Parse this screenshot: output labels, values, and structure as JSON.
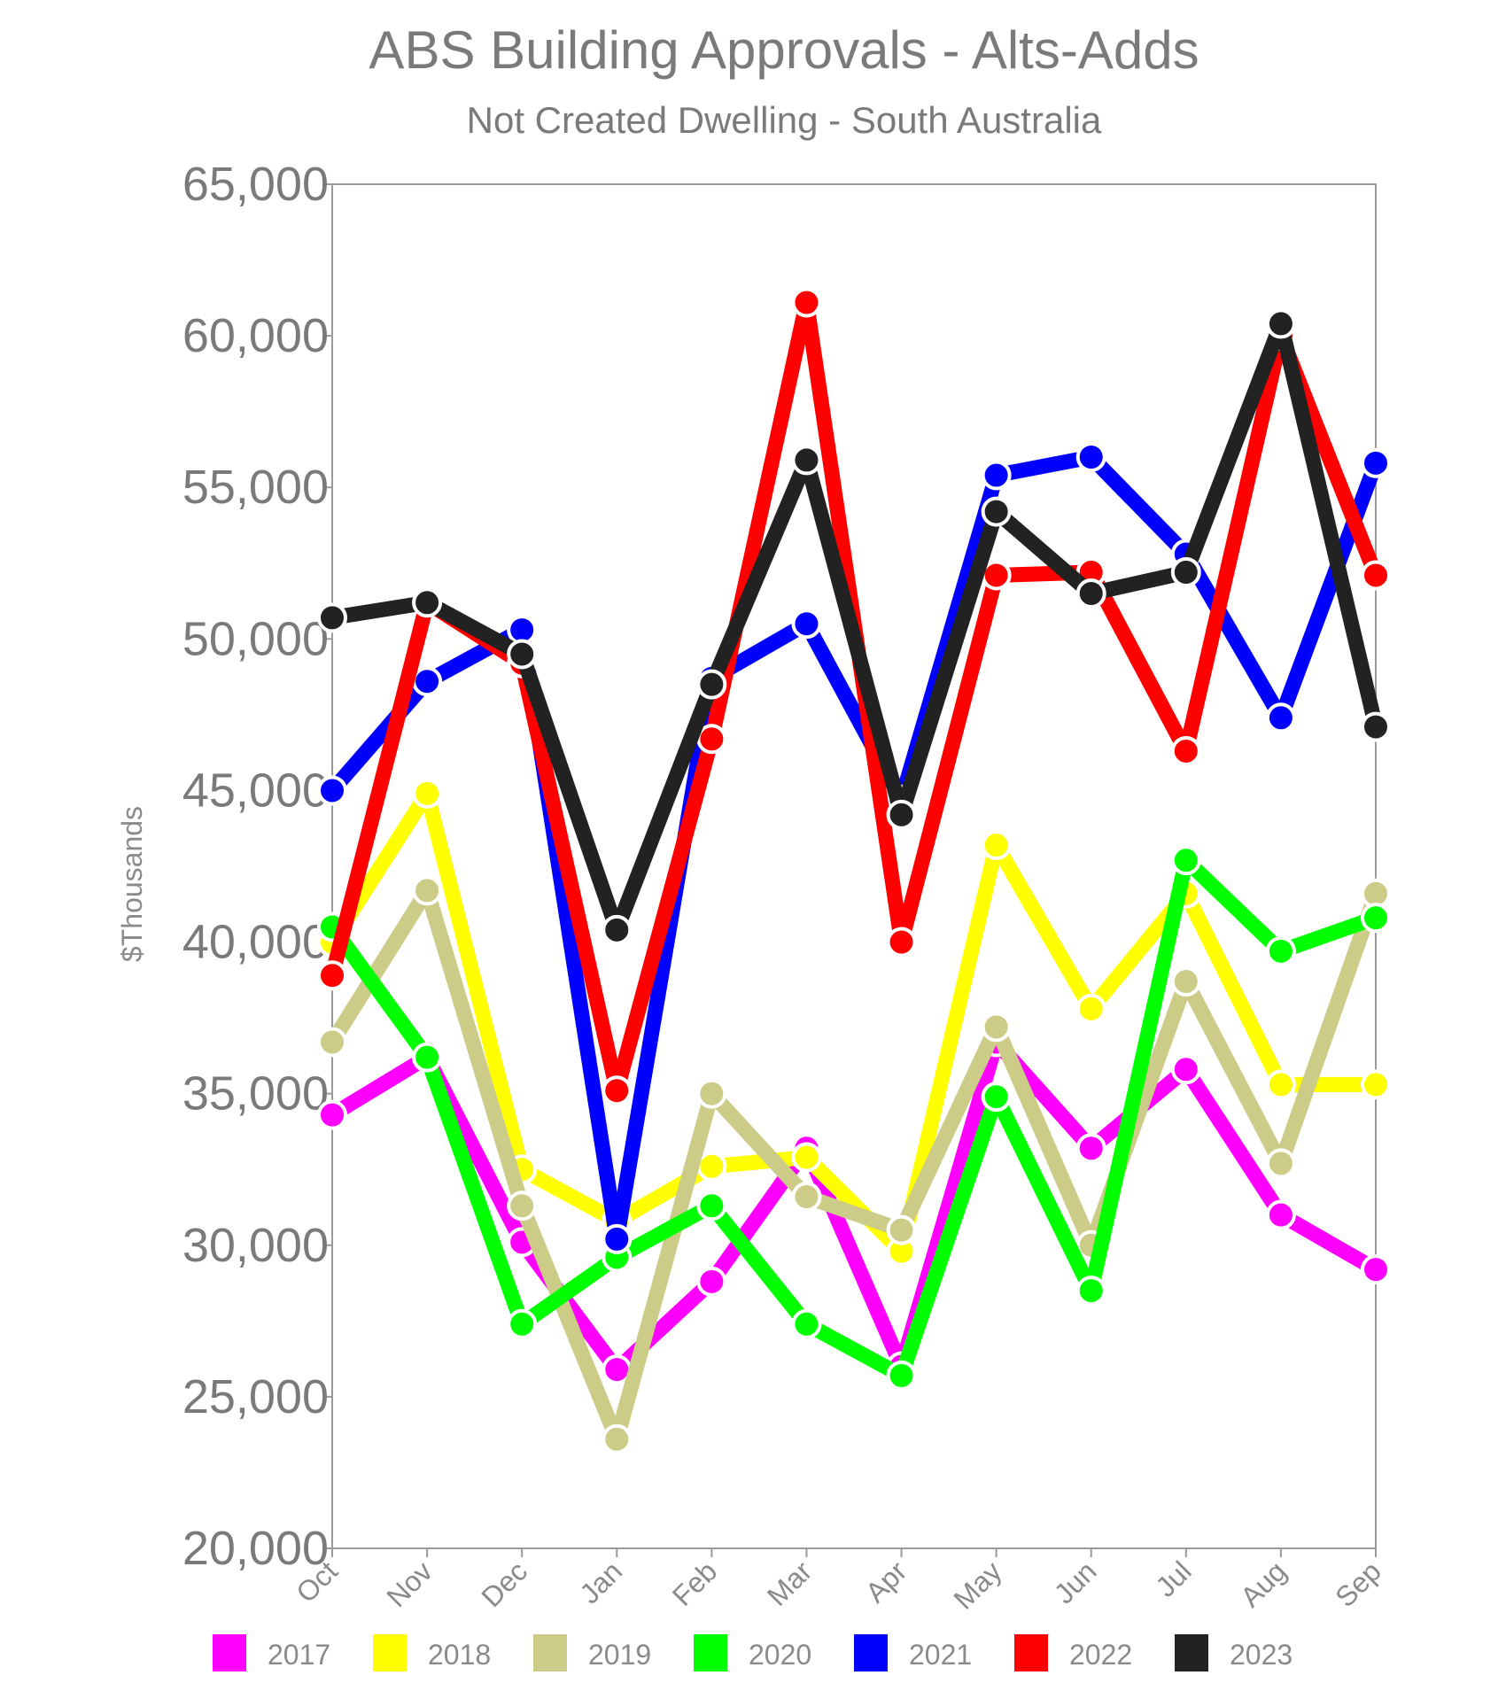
{
  "chart_data": {
    "type": "line",
    "title": "ABS Building Approvals - Alts-Adds",
    "subtitle": "Not Created Dwelling - South Australia",
    "xlabel": "",
    "ylabel": "$Thousands",
    "ylim": [
      20000,
      65000
    ],
    "yticks": [
      "20,000",
      "25,000",
      "30,000",
      "35,000",
      "40,000",
      "45,000",
      "50,000",
      "55,000",
      "60,000",
      "65,000"
    ],
    "categories": [
      "Oct",
      "Nov",
      "Dec",
      "Jan",
      "Feb",
      "Mar",
      "Apr",
      "May",
      "Jun",
      "Jul",
      "Aug",
      "Sep"
    ],
    "legend_position": "bottom",
    "series": [
      {
        "name": "2017",
        "color": "#ff00ff",
        "values": [
          34300,
          36200,
          30100,
          25900,
          28800,
          33200,
          26000,
          36700,
          33200,
          35800,
          31000,
          29200
        ]
      },
      {
        "name": "2018",
        "color": "#ffff00",
        "values": [
          40000,
          44900,
          32500,
          30800,
          32600,
          32900,
          29800,
          43200,
          37800,
          41600,
          35300,
          35300
        ]
      },
      {
        "name": "2019",
        "color": "#cccc88",
        "values": [
          36700,
          41700,
          31300,
          23600,
          35000,
          31600,
          30500,
          37200,
          30000,
          38700,
          32700,
          41600
        ]
      },
      {
        "name": "2020",
        "color": "#00ff00",
        "values": [
          40500,
          36200,
          27400,
          29600,
          31300,
          27400,
          25700,
          34900,
          28500,
          42700,
          39700,
          40800
        ]
      },
      {
        "name": "2021",
        "color": "#0000ff",
        "values": [
          45000,
          48600,
          50300,
          30200,
          48700,
          50500,
          44700,
          55400,
          56000,
          52800,
          47400,
          55800
        ]
      },
      {
        "name": "2022",
        "color": "#ff0000",
        "values": [
          38900,
          51200,
          49200,
          35100,
          46700,
          61100,
          40000,
          52100,
          52200,
          46300,
          60000,
          52100
        ]
      },
      {
        "name": "2023",
        "color": "#222222",
        "values": [
          50700,
          51200,
          49500,
          40400,
          48500,
          55900,
          44200,
          54200,
          51500,
          52200,
          60400,
          47100
        ]
      }
    ]
  }
}
